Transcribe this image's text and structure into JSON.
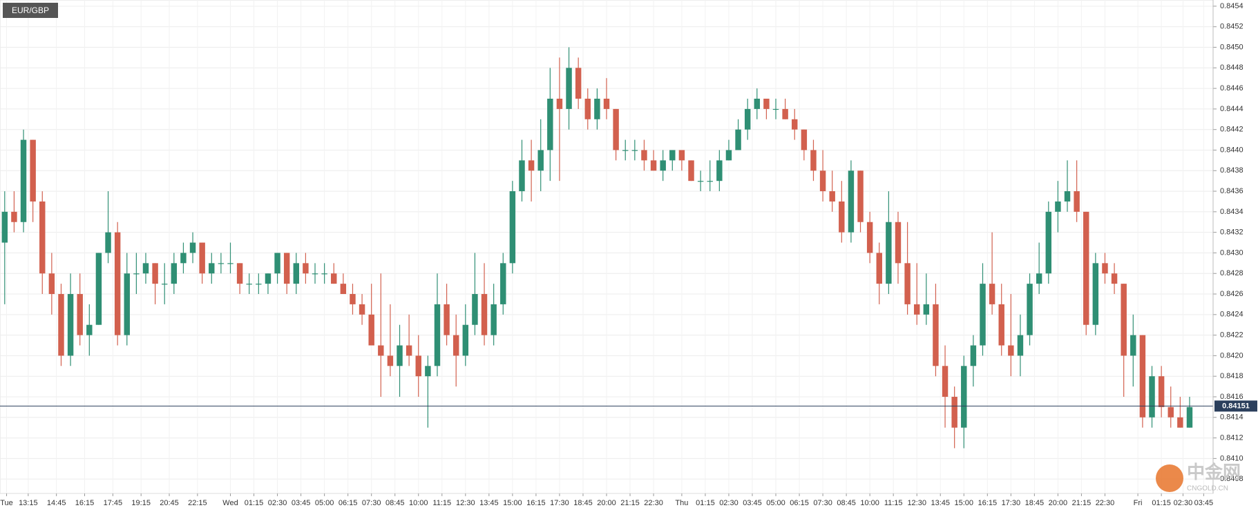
{
  "chart_data": {
    "type": "candlestick",
    "title": "EUR/GBP",
    "open": [
      0.8431,
      0.8434,
      0.8433,
      0.8441,
      0.8435,
      0.8428,
      0.8426,
      0.842,
      0.8426,
      0.8422,
      0.8423,
      0.843,
      0.8432,
      0.8422,
      0.8428,
      0.8428,
      0.8429,
      0.8427,
      0.8427,
      0.8429,
      0.843,
      0.8431,
      0.8428,
      0.8429,
      0.8429,
      0.8429,
      0.8427,
      0.8427,
      0.8427,
      0.8428,
      0.843,
      0.8427,
      0.8429,
      0.8428,
      0.8428,
      0.8428,
      0.8427,
      0.8426,
      0.8425,
      0.8424,
      0.8421,
      0.842,
      0.8419,
      0.8421,
      0.842,
      0.8418,
      0.8419,
      0.8425,
      0.8422,
      0.842,
      0.8423,
      0.8426,
      0.8422,
      0.8425,
      0.8429,
      0.8436,
      0.8439,
      0.8438,
      0.844,
      0.8445,
      0.8444,
      0.8448,
      0.8445,
      0.8443,
      0.8445,
      0.8444,
      0.844,
      0.844,
      0.844,
      0.8439,
      0.8438,
      0.8439,
      0.844,
      0.8439,
      0.8437,
      0.8437,
      0.8437,
      0.8439,
      0.844,
      0.8442,
      0.8444,
      0.8445,
      0.8444,
      0.8444,
      0.8443,
      0.8442,
      0.844,
      0.8438,
      0.8436,
      0.8435,
      0.8432,
      0.8438,
      0.8433,
      0.843,
      0.8427,
      0.8433,
      0.8429,
      0.8425,
      0.8424,
      0.8425,
      0.8419,
      0.8416,
      0.8413,
      0.8419,
      0.8421,
      0.8427,
      0.8425,
      0.8421,
      0.842,
      0.8422,
      0.8427,
      0.8428,
      0.8434,
      0.8435,
      0.8436,
      0.8434,
      0.8423,
      0.8429,
      0.8428,
      0.8427,
      0.842,
      0.8422,
      0.8414,
      0.8418,
      0.8415,
      0.8414,
      0.8413
    ],
    "high": [
      0.8436,
      0.8436,
      0.8442,
      0.8441,
      0.8436,
      0.843,
      0.8427,
      0.8428,
      0.8428,
      0.8425,
      0.843,
      0.8436,
      0.8433,
      0.843,
      0.843,
      0.843,
      0.8429,
      0.8429,
      0.843,
      0.8431,
      0.8432,
      0.8431,
      0.843,
      0.843,
      0.8431,
      0.8429,
      0.8428,
      0.8428,
      0.8428,
      0.843,
      0.843,
      0.843,
      0.843,
      0.8429,
      0.8429,
      0.8429,
      0.8428,
      0.8427,
      0.8426,
      0.8427,
      0.8428,
      0.8425,
      0.8423,
      0.8424,
      0.8422,
      0.842,
      0.8428,
      0.8427,
      0.8424,
      0.8425,
      0.843,
      0.8429,
      0.8427,
      0.843,
      0.8437,
      0.8441,
      0.8441,
      0.8443,
      0.8448,
      0.8449,
      0.845,
      0.8449,
      0.8446,
      0.8446,
      0.8447,
      0.8444,
      0.8441,
      0.8441,
      0.8441,
      0.844,
      0.844,
      0.844,
      0.844,
      0.8439,
      0.8438,
      0.8439,
      0.844,
      0.8441,
      0.8443,
      0.8445,
      0.8446,
      0.8445,
      0.8445,
      0.8445,
      0.8444,
      0.8442,
      0.8441,
      0.844,
      0.8438,
      0.8437,
      0.8439,
      0.8438,
      0.8434,
      0.8431,
      0.8436,
      0.8434,
      0.8433,
      0.8429,
      0.8428,
      0.8427,
      0.8421,
      0.8417,
      0.842,
      0.8422,
      0.8429,
      0.8432,
      0.8427,
      0.8426,
      0.8424,
      0.8428,
      0.8431,
      0.8435,
      0.8437,
      0.8439,
      0.8439,
      0.8434,
      0.843,
      0.843,
      0.8429,
      0.8427,
      0.8424,
      0.8422,
      0.8419,
      0.8419,
      0.8417,
      0.8416,
      0.8416
    ],
    "low": [
      0.8425,
      0.8432,
      0.8432,
      0.8433,
      0.8426,
      0.8424,
      0.8419,
      0.8419,
      0.8421,
      0.842,
      0.8423,
      0.8429,
      0.8421,
      0.8421,
      0.8426,
      0.8427,
      0.8425,
      0.8425,
      0.8426,
      0.8428,
      0.8429,
      0.8427,
      0.8427,
      0.8428,
      0.8428,
      0.8426,
      0.8426,
      0.8426,
      0.8426,
      0.8427,
      0.8426,
      0.8426,
      0.8427,
      0.8427,
      0.8427,
      0.8427,
      0.8426,
      0.8424,
      0.8423,
      0.8421,
      0.8416,
      0.8418,
      0.8416,
      0.8419,
      0.8416,
      0.8413,
      0.8418,
      0.8421,
      0.8417,
      0.8419,
      0.8422,
      0.8421,
      0.8421,
      0.8424,
      0.8428,
      0.8435,
      0.8435,
      0.8436,
      0.8437,
      0.8437,
      0.8442,
      0.8444,
      0.8442,
      0.8442,
      0.8443,
      0.8439,
      0.8439,
      0.8439,
      0.8438,
      0.8438,
      0.8437,
      0.8438,
      0.8438,
      0.8437,
      0.8436,
      0.8436,
      0.8436,
      0.8439,
      0.844,
      0.8441,
      0.8443,
      0.8443,
      0.8443,
      0.8443,
      0.8441,
      0.8439,
      0.8437,
      0.8435,
      0.8434,
      0.8431,
      0.8431,
      0.8432,
      0.8429,
      0.8425,
      0.8426,
      0.8427,
      0.8424,
      0.8423,
      0.8423,
      0.8418,
      0.8413,
      0.8411,
      0.8411,
      0.8417,
      0.842,
      0.8424,
      0.842,
      0.8418,
      0.8418,
      0.8421,
      0.8426,
      0.8427,
      0.8432,
      0.8434,
      0.8433,
      0.8422,
      0.8422,
      0.8427,
      0.8426,
      0.8416,
      0.8417,
      0.8413,
      0.8413,
      0.8414,
      0.8413,
      0.8413,
      0.8413
    ],
    "close": [
      0.8434,
      0.8433,
      0.8441,
      0.8435,
      0.8428,
      0.8426,
      0.842,
      0.8426,
      0.8422,
      0.8423,
      0.843,
      0.8432,
      0.8422,
      0.8428,
      0.8428,
      0.8429,
      0.8427,
      0.8427,
      0.8429,
      0.843,
      0.8431,
      0.8428,
      0.8429,
      0.8429,
      0.8429,
      0.8427,
      0.8427,
      0.8427,
      0.8428,
      0.843,
      0.8427,
      0.8429,
      0.8428,
      0.8428,
      0.8428,
      0.8427,
      0.8426,
      0.8425,
      0.8424,
      0.8421,
      0.842,
      0.8419,
      0.8421,
      0.842,
      0.8418,
      0.8419,
      0.8425,
      0.8422,
      0.842,
      0.8423,
      0.8426,
      0.8422,
      0.8425,
      0.8429,
      0.8436,
      0.8439,
      0.8438,
      0.844,
      0.8445,
      0.8444,
      0.8448,
      0.8445,
      0.8443,
      0.8445,
      0.8444,
      0.844,
      0.844,
      0.844,
      0.8439,
      0.8438,
      0.8439,
      0.844,
      0.8439,
      0.8437,
      0.8437,
      0.8437,
      0.8439,
      0.844,
      0.8442,
      0.8444,
      0.8445,
      0.8444,
      0.8444,
      0.8443,
      0.8442,
      0.844,
      0.8438,
      0.8436,
      0.8435,
      0.8432,
      0.8438,
      0.8433,
      0.843,
      0.8427,
      0.8433,
      0.8429,
      0.8425,
      0.8424,
      0.8425,
      0.8419,
      0.8416,
      0.8413,
      0.8419,
      0.8421,
      0.8427,
      0.8425,
      0.8421,
      0.842,
      0.8422,
      0.8427,
      0.8428,
      0.8434,
      0.8435,
      0.8436,
      0.8434,
      0.8423,
      0.8429,
      0.8428,
      0.8427,
      0.842,
      0.8422,
      0.8414,
      0.8418,
      0.8415,
      0.8414,
      0.8413,
      0.8415
    ],
    "up_color": "#2f8f74",
    "down_color": "#d2604e",
    "current_price": 0.84151,
    "current_price_color": "#2b3f5c",
    "xlim": [
      0,
      129
    ],
    "xticks": [
      {
        "value": 0.7,
        "label": "Tue"
      },
      {
        "value": 3,
        "label": "13:15"
      },
      {
        "value": 6,
        "label": "14:45"
      },
      {
        "value": 9,
        "label": "16:15"
      },
      {
        "value": 12,
        "label": "17:45"
      },
      {
        "value": 15,
        "label": "19:15"
      },
      {
        "value": 18,
        "label": "20:45"
      },
      {
        "value": 21,
        "label": "22:15"
      },
      {
        "value": 24.5,
        "label": "Wed"
      },
      {
        "value": 27,
        "label": "01:15"
      },
      {
        "value": 29.5,
        "label": "02:30"
      },
      {
        "value": 32,
        "label": "03:45"
      },
      {
        "value": 34.5,
        "label": "05:00"
      },
      {
        "value": 37,
        "label": "06:15"
      },
      {
        "value": 39.5,
        "label": "07:30"
      },
      {
        "value": 42,
        "label": "08:45"
      },
      {
        "value": 44.5,
        "label": "10:00"
      },
      {
        "value": 47,
        "label": "11:15"
      },
      {
        "value": 49.5,
        "label": "12:30"
      },
      {
        "value": 52,
        "label": "13:45"
      },
      {
        "value": 54.5,
        "label": "15:00"
      },
      {
        "value": 57,
        "label": "16:15"
      },
      {
        "value": 59.5,
        "label": "17:30"
      },
      {
        "value": 62,
        "label": "18:45"
      },
      {
        "value": 64.5,
        "label": "20:00"
      },
      {
        "value": 67,
        "label": "21:15"
      },
      {
        "value": 69.5,
        "label": "22:30"
      },
      {
        "value": 72.5,
        "label": "Thu"
      },
      {
        "value": 75,
        "label": "01:15"
      },
      {
        "value": 77.5,
        "label": "02:30"
      },
      {
        "value": 80,
        "label": "03:45"
      },
      {
        "value": 82.5,
        "label": "05:00"
      },
      {
        "value": 85,
        "label": "06:15"
      },
      {
        "value": 87.5,
        "label": "07:30"
      },
      {
        "value": 90,
        "label": "08:45"
      },
      {
        "value": 92.5,
        "label": "10:00"
      },
      {
        "value": 95,
        "label": "11:15"
      },
      {
        "value": 97.5,
        "label": "12:30"
      },
      {
        "value": 100,
        "label": "13:45"
      },
      {
        "value": 102.5,
        "label": "15:00"
      },
      {
        "value": 105,
        "label": "16:15"
      },
      {
        "value": 107.5,
        "label": "17:30"
      },
      {
        "value": 110,
        "label": "18:45"
      },
      {
        "value": 112.5,
        "label": "20:00"
      },
      {
        "value": 115,
        "label": "21:15"
      },
      {
        "value": 117.5,
        "label": "22:30"
      },
      {
        "value": 121,
        "label": "Fri"
      },
      {
        "value": 123.5,
        "label": "01:15"
      },
      {
        "value": 125.8,
        "label": "02:30"
      },
      {
        "value": 128,
        "label": "03:45"
      }
    ],
    "ylim": [
      0.84066,
      0.84546
    ],
    "yticks": [
      0.8408,
      {
        "value": 0.841,
        "label": "0.8410"
      },
      0.8412,
      0.8414,
      0.8416,
      0.8418,
      {
        "value": 0.842,
        "label": "0.8420"
      },
      0.8422,
      0.8424,
      0.8426,
      0.8428,
      {
        "value": 0.843,
        "label": "0.8430"
      },
      0.8432,
      0.8434,
      0.8436,
      0.8438,
      {
        "value": 0.844,
        "label": "0.8440"
      },
      0.8442,
      0.8444,
      0.8446,
      0.8448,
      {
        "value": 0.845,
        "label": "0.8450"
      },
      0.8452,
      0.8454
    ],
    "grid": true,
    "watermark": {
      "name": "中金网",
      "site": "CNGOLD.CN"
    }
  }
}
